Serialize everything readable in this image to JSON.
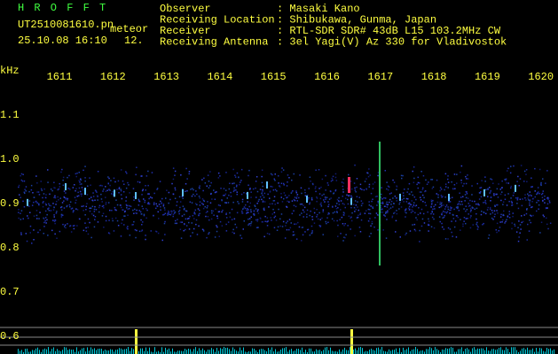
{
  "header": {
    "app": "H R O F F T",
    "file": "UT2510081610.pn",
    "file_suffix": "meteor",
    "datetime": "25.10.08 16:10",
    "count": "12."
  },
  "info": [
    {
      "label": "Observer",
      "value": ": Masaki Kano"
    },
    {
      "label": "Receiving Location",
      "value": ": Shibukawa, Gunma, Japan"
    },
    {
      "label": "Receiver",
      "value": ": RTL-SDR SDR# 43dB L15 103.2MHz CW"
    },
    {
      "label": "Receiving Antenna",
      "value": ": 3el Yagi(V) Az 330 for Vladivostok"
    }
  ],
  "freq_axis": {
    "unit": "kHz",
    "labels": [
      "1611",
      "1612",
      "1613",
      "1614",
      "1615",
      "1616",
      "1617",
      "1618",
      "1619",
      "1620"
    ]
  },
  "time_axis": {
    "labels": [
      "1.1",
      "1.0",
      "0.9",
      "0.8",
      "0.7",
      "0.6"
    ]
  }
}
